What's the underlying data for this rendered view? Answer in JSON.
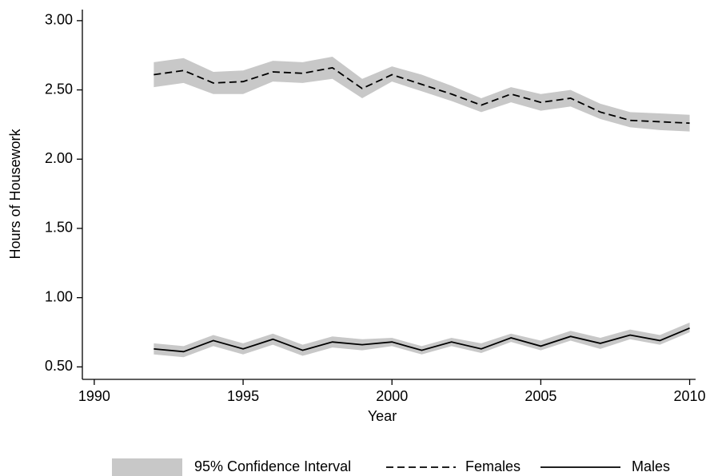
{
  "chart_data": {
    "type": "line",
    "x_label": "Year",
    "y_label": "Hours of Housework",
    "x": [
      1992,
      1993,
      1994,
      1995,
      1996,
      1997,
      1998,
      1999,
      2000,
      2001,
      2002,
      2003,
      2004,
      2005,
      2006,
      2007,
      2008,
      2009,
      2010
    ],
    "xlim": [
      1989.6,
      2010.2
    ],
    "xticks": [
      1990,
      1995,
      2000,
      2005,
      2010
    ],
    "ylim": [
      0.41,
      3.08
    ],
    "yticks": [
      {
        "value": 0.5,
        "label": "0.50"
      },
      {
        "value": 1,
        "label": "1.00"
      },
      {
        "value": 1.5,
        "label": "1.50"
      },
      {
        "value": 2,
        "label": "2.00"
      },
      {
        "value": 2.5,
        "label": "2.50"
      },
      {
        "value": 3,
        "label": "3.00"
      }
    ],
    "band_name": "95% Confidence Interval",
    "band_color": "#c8c8c8",
    "series": [
      {
        "name": "Females",
        "color": "#000000",
        "dash": "dashed",
        "values": [
          2.61,
          2.64,
          2.55,
          2.56,
          2.63,
          2.62,
          2.66,
          2.51,
          2.61,
          2.54,
          2.47,
          2.39,
          2.47,
          2.41,
          2.44,
          2.34,
          2.28,
          2.27,
          2.26
        ],
        "upper": [
          2.7,
          2.73,
          2.63,
          2.64,
          2.71,
          2.7,
          2.74,
          2.58,
          2.67,
          2.61,
          2.53,
          2.44,
          2.52,
          2.47,
          2.5,
          2.4,
          2.34,
          2.33,
          2.32
        ],
        "lower": [
          2.52,
          2.55,
          2.47,
          2.47,
          2.56,
          2.55,
          2.58,
          2.44,
          2.56,
          2.49,
          2.42,
          2.34,
          2.41,
          2.35,
          2.38,
          2.29,
          2.23,
          2.21,
          2.2
        ]
      },
      {
        "name": "Males",
        "color": "#000000",
        "dash": "solid",
        "values": [
          0.63,
          0.61,
          0.69,
          0.63,
          0.7,
          0.62,
          0.68,
          0.66,
          0.68,
          0.62,
          0.68,
          0.63,
          0.71,
          0.65,
          0.72,
          0.67,
          0.73,
          0.69,
          0.78
        ],
        "upper": [
          0.67,
          0.65,
          0.73,
          0.67,
          0.74,
          0.66,
          0.72,
          0.7,
          0.71,
          0.65,
          0.71,
          0.67,
          0.74,
          0.69,
          0.76,
          0.71,
          0.77,
          0.73,
          0.82
        ],
        "lower": [
          0.59,
          0.57,
          0.65,
          0.59,
          0.66,
          0.58,
          0.64,
          0.62,
          0.65,
          0.59,
          0.65,
          0.6,
          0.68,
          0.62,
          0.69,
          0.63,
          0.7,
          0.66,
          0.75
        ]
      }
    ]
  }
}
